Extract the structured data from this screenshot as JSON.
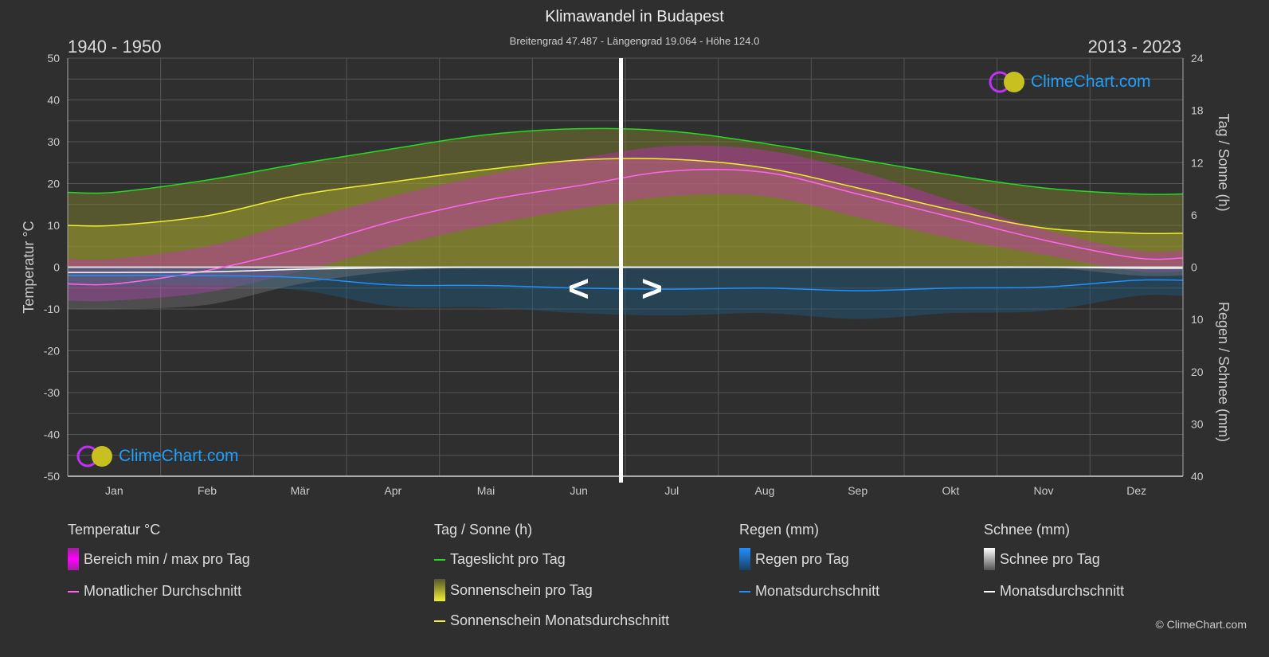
{
  "header": {
    "title": "Klimawandel in Budapest",
    "subtitle": "Breitengrad 47.487 - Längengrad 19.064 - Höhe 124.0",
    "period_left": "1940 - 1950",
    "period_right": "2013 - 2023",
    "nav_prev": "<",
    "nav_next": ">"
  },
  "logo": {
    "text": "ClimeChart.com"
  },
  "copyright": "© ClimeChart.com",
  "colors": {
    "background": "#2f2f2f",
    "temp_range": "#e020e0",
    "temp_avg": "#ff66ee",
    "daylight": "#22dd22",
    "sunshine": "#d8d830",
    "sunshine_avg": "#f0f030",
    "rain": "#1e90ff",
    "snow": "#ffffff"
  },
  "chart_data": {
    "type": "line",
    "title": "Klimawandel in Budapest",
    "categories": [
      "Jan",
      "Feb",
      "Mär",
      "Apr",
      "Mai",
      "Jun",
      "Jul",
      "Aug",
      "Sep",
      "Okt",
      "Nov",
      "Dez"
    ],
    "y_left": {
      "label": "Temperatur °C",
      "range": [
        -50,
        50
      ],
      "ticks": [
        50,
        40,
        30,
        20,
        10,
        0,
        -10,
        -20,
        -30,
        -40,
        -50
      ]
    },
    "y_right_top": {
      "label": "Tag / Sonne (h)",
      "range": [
        0,
        24
      ],
      "ticks": [
        24,
        18,
        12,
        6,
        0
      ]
    },
    "y_right_bottom": {
      "label": "Regen / Schnee (mm)",
      "range": [
        0,
        40
      ],
      "ticks": [
        0,
        10,
        20,
        30,
        40
      ]
    },
    "grid": true,
    "series": [
      {
        "name": "Monatlicher Durchschnitt",
        "group": "Temperatur °C",
        "axis": "temp",
        "values": [
          -4,
          -0.8,
          4.5,
          11,
          16,
          19.5,
          23,
          22.7,
          17.5,
          12,
          6.5,
          2.2
        ]
      },
      {
        "name": "Bereich min / max pro Tag",
        "group": "Temperatur °C",
        "axis": "temp",
        "min": [
          -8,
          -6,
          -1,
          5,
          10,
          14,
          17,
          17,
          12,
          7,
          3,
          -1
        ],
        "max": [
          2,
          5,
          11,
          17,
          22,
          26,
          29,
          28,
          23,
          16,
          9,
          4
        ]
      },
      {
        "name": "Tageslicht pro Tag",
        "group": "Tag / Sonne (h)",
        "axis": "hours",
        "values": [
          8.6,
          10,
          11.9,
          13.6,
          15.2,
          15.9,
          15.6,
          14.2,
          12.4,
          10.6,
          9.1,
          8.4
        ]
      },
      {
        "name": "Sonnenschein Monatsdurchschnitt",
        "group": "Tag / Sonne (h)",
        "axis": "hours",
        "values": [
          4.8,
          5.9,
          8.3,
          9.8,
          11.2,
          12.3,
          12.4,
          11.4,
          9.1,
          6.6,
          4.5,
          3.9
        ]
      },
      {
        "name": "Monatsdurchschnitt",
        "group": "Regen (mm)",
        "axis": "mm",
        "values": [
          1.6,
          1.6,
          2,
          3.4,
          3.5,
          4,
          4.2,
          4,
          4.5,
          4,
          3.8,
          2.5
        ]
      },
      {
        "name": "Monatsdurchschnitt",
        "group": "Schnee (mm)",
        "axis": "mm",
        "values": [
          1,
          0.9,
          0.4,
          0.1,
          0,
          0,
          0,
          0,
          0,
          0,
          0,
          0.2
        ]
      }
    ]
  },
  "legend": {
    "temp": {
      "head": "Temperatur °C",
      "range": "Bereich min / max pro Tag",
      "avg": "Monatlicher Durchschnitt"
    },
    "sun": {
      "head": "Tag / Sonne (h)",
      "daylight": "Tageslicht pro Tag",
      "sunshine": "Sonnenschein pro Tag",
      "sunshine_avg": "Sonnenschein Monatsdurchschnitt"
    },
    "rain": {
      "head": "Regen (mm)",
      "daily": "Regen pro Tag",
      "avg": "Monatsdurchschnitt"
    },
    "snow": {
      "head": "Schnee (mm)",
      "daily": "Schnee pro Tag",
      "avg": "Monatsdurchschnitt"
    }
  }
}
